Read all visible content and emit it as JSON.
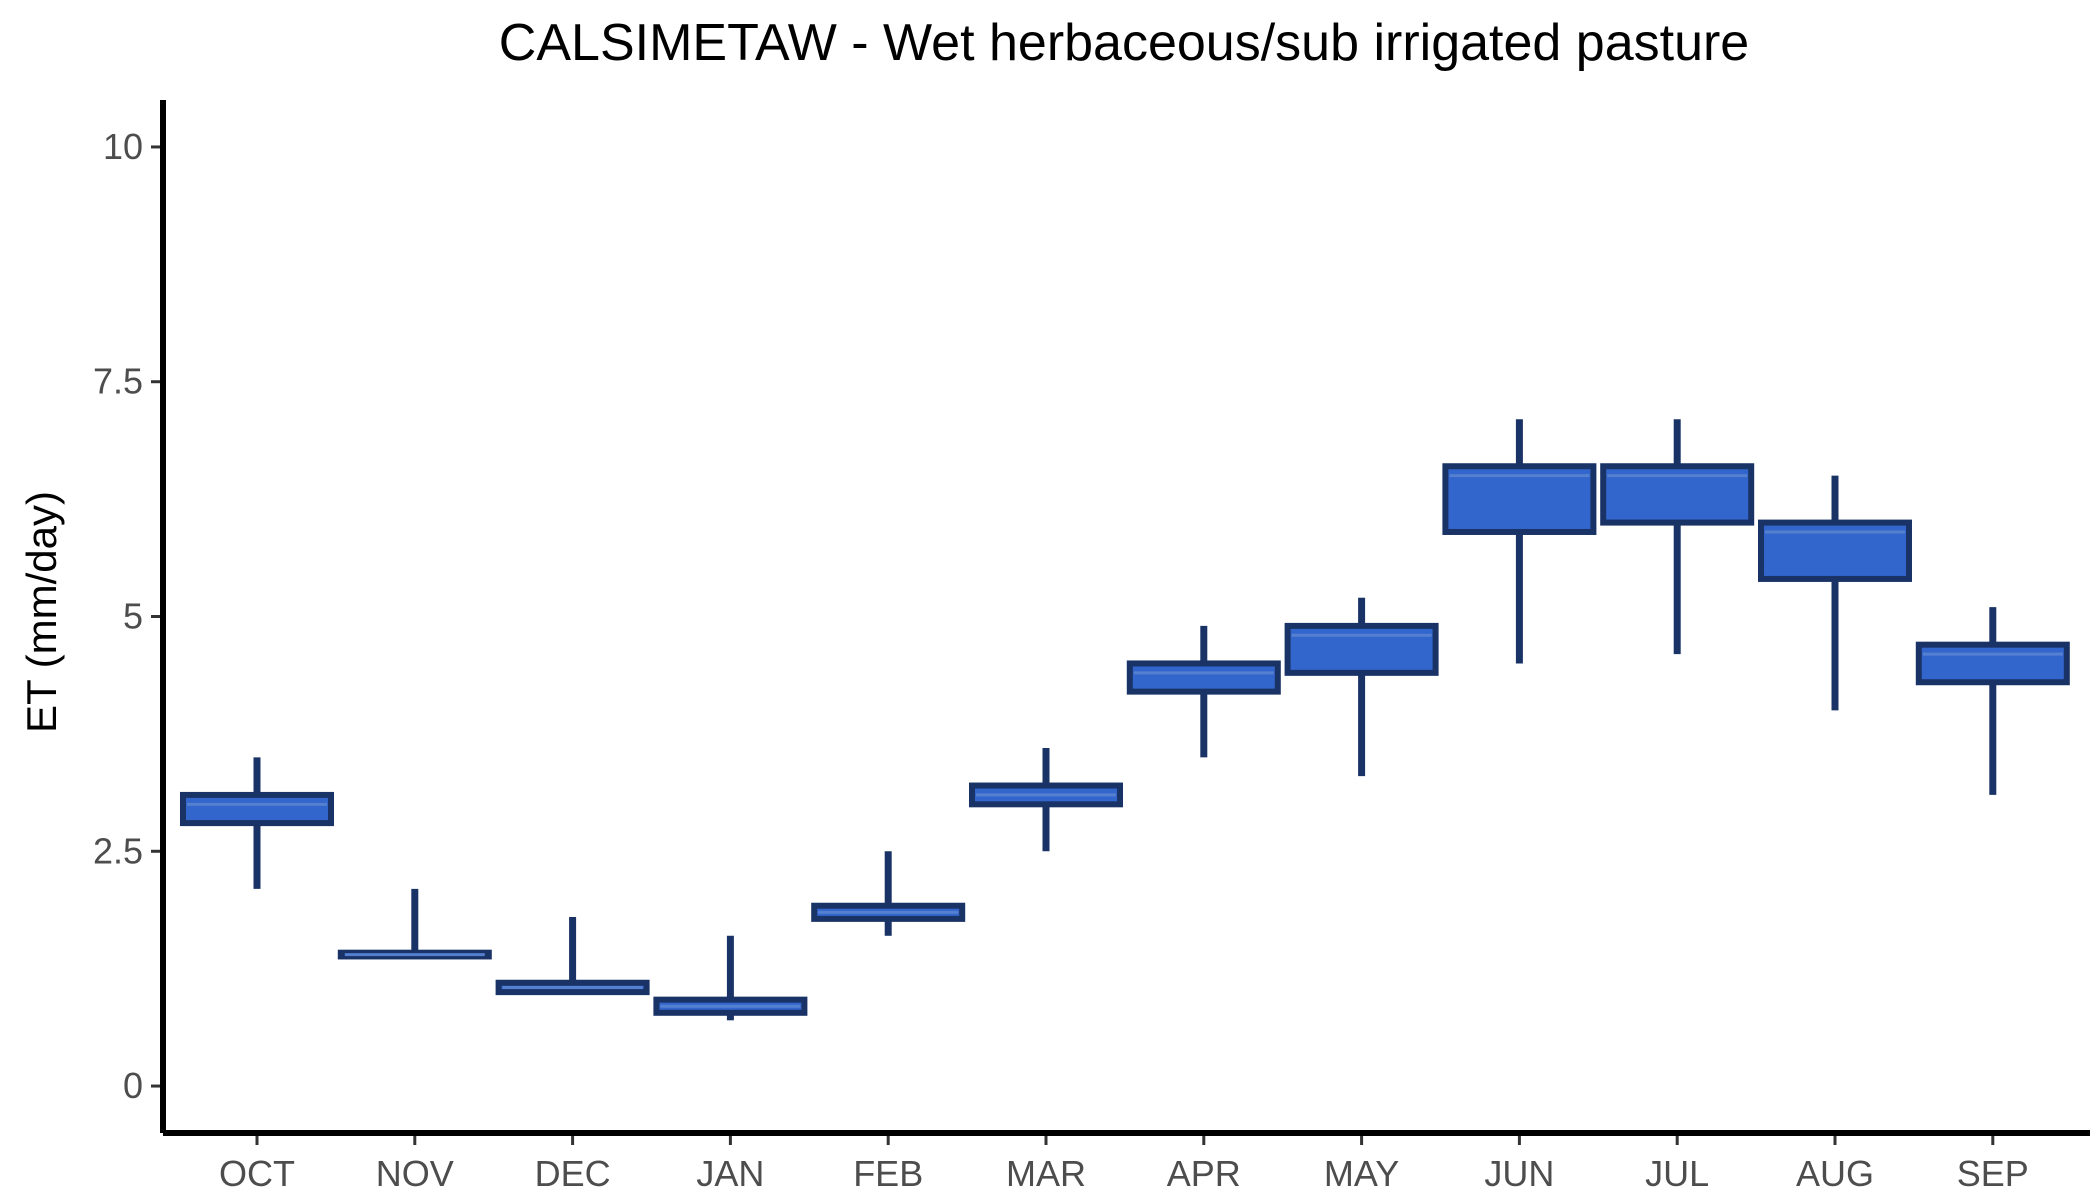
{
  "chart_data": {
    "type": "boxplot",
    "title": "CALSIMETAW - Wet herbaceous/sub irrigated pasture",
    "xlabel": "",
    "ylabel": "ET (mm/day)",
    "ylim": [
      -0.5,
      10.5
    ],
    "y_ticks": [
      0,
      2.5,
      5,
      7.5,
      10
    ],
    "y_tick_labels": [
      "0",
      "2.5",
      "5",
      "7.5",
      "10"
    ],
    "grid": false,
    "legend": "none",
    "categories": [
      "OCT",
      "NOV",
      "DEC",
      "JAN",
      "FEB",
      "MAR",
      "APR",
      "MAY",
      "JUN",
      "JUL",
      "AUG",
      "SEP"
    ],
    "boxes": [
      {
        "month": "OCT",
        "lower_whisker": 2.1,
        "q1": 2.8,
        "median": 3.0,
        "q3": 3.1,
        "upper_whisker": 3.5
      },
      {
        "month": "NOV",
        "lower_whisker": 1.38,
        "q1": 1.38,
        "median": 1.4,
        "q3": 1.42,
        "upper_whisker": 2.1
      },
      {
        "month": "DEC",
        "lower_whisker": 1.0,
        "q1": 1.0,
        "median": 1.05,
        "q3": 1.1,
        "upper_whisker": 1.8
      },
      {
        "month": "JAN",
        "lower_whisker": 0.7,
        "q1": 0.78,
        "median": 0.85,
        "q3": 0.92,
        "upper_whisker": 1.6
      },
      {
        "month": "FEB",
        "lower_whisker": 1.6,
        "q1": 1.78,
        "median": 1.85,
        "q3": 1.92,
        "upper_whisker": 2.5
      },
      {
        "month": "MAR",
        "lower_whisker": 2.5,
        "q1": 3.0,
        "median": 3.1,
        "q3": 3.2,
        "upper_whisker": 3.6
      },
      {
        "month": "APR",
        "lower_whisker": 3.5,
        "q1": 4.2,
        "median": 4.4,
        "q3": 4.5,
        "upper_whisker": 4.9
      },
      {
        "month": "MAY",
        "lower_whisker": 3.3,
        "q1": 4.4,
        "median": 4.8,
        "q3": 4.9,
        "upper_whisker": 5.2
      },
      {
        "month": "JUN",
        "lower_whisker": 4.5,
        "q1": 5.9,
        "median": 6.5,
        "q3": 6.6,
        "upper_whisker": 7.1
      },
      {
        "month": "JUL",
        "lower_whisker": 4.6,
        "q1": 6.0,
        "median": 6.5,
        "q3": 6.6,
        "upper_whisker": 7.1
      },
      {
        "month": "AUG",
        "lower_whisker": 4.0,
        "q1": 5.4,
        "median": 5.9,
        "q3": 6.0,
        "upper_whisker": 6.5
      },
      {
        "month": "SEP",
        "lower_whisker": 3.1,
        "q1": 4.3,
        "median": 4.6,
        "q3": 4.7,
        "upper_whisker": 5.1
      }
    ],
    "colors": {
      "box_fill": "#3366cc",
      "box_outline": "#1a3366",
      "median_line": "#5580d0",
      "whisker": "#1a3366",
      "axis": "#000000"
    }
  }
}
